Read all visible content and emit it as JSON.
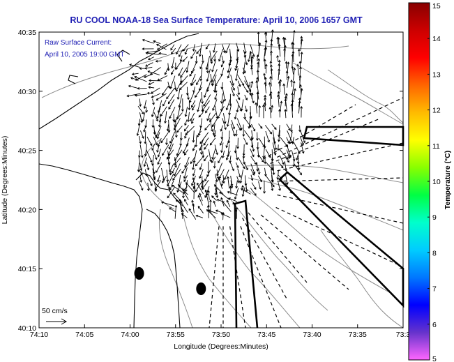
{
  "chart_data": {
    "type": "quiver map",
    "title": "RU COOL  NOAA-18  Sea Surface Temperature:  April 10, 2006 1657 GMT",
    "annotation": [
      "Raw Surface Current:",
      "April 10, 2005 19:00 GMT"
    ],
    "xlabel": "Longitude (Degrees:Minutes)",
    "ylabel": "Latitude (Degrees:Minutes)",
    "x_ticks": [
      "74:10",
      "74:05",
      "74:00",
      "73:55",
      "73:50",
      "73:45",
      "73:40",
      "73:35",
      "73:3"
    ],
    "y_ticks": [
      "40:35",
      "40:30",
      "40:25",
      "40:20",
      "40:15",
      "40:10"
    ],
    "xlim": [
      "74:10",
      "73:30"
    ],
    "ylim": [
      "40:10",
      "40:35"
    ],
    "scale_label": "50 cm/s",
    "colorbar": {
      "label": "Temperature (°C)",
      "ticks": [
        "15",
        "14",
        "13",
        "12",
        "11",
        "10",
        "9",
        "8",
        "7",
        "6",
        "5"
      ],
      "range": [
        5,
        15
      ],
      "colors": [
        "#ff66ff",
        "#6633cc",
        "#0000ff",
        "#0077ff",
        "#00ccff",
        "#00ffcc",
        "#00ff44",
        "#88ff00",
        "#ffff00",
        "#ffbb00",
        "#ff6600",
        "#ff0000",
        "#cc0000",
        "#880000"
      ]
    },
    "markers": [
      {
        "lon": "73:59:0",
        "lat": "40:14:6"
      },
      {
        "lon": "73:52:2",
        "lat": "40:13:3"
      }
    ],
    "current_field": {
      "units": "cm/s",
      "note": "dense arrow field of raw HF-radar surface currents over the harbor entrance and apex of the bight"
    }
  }
}
